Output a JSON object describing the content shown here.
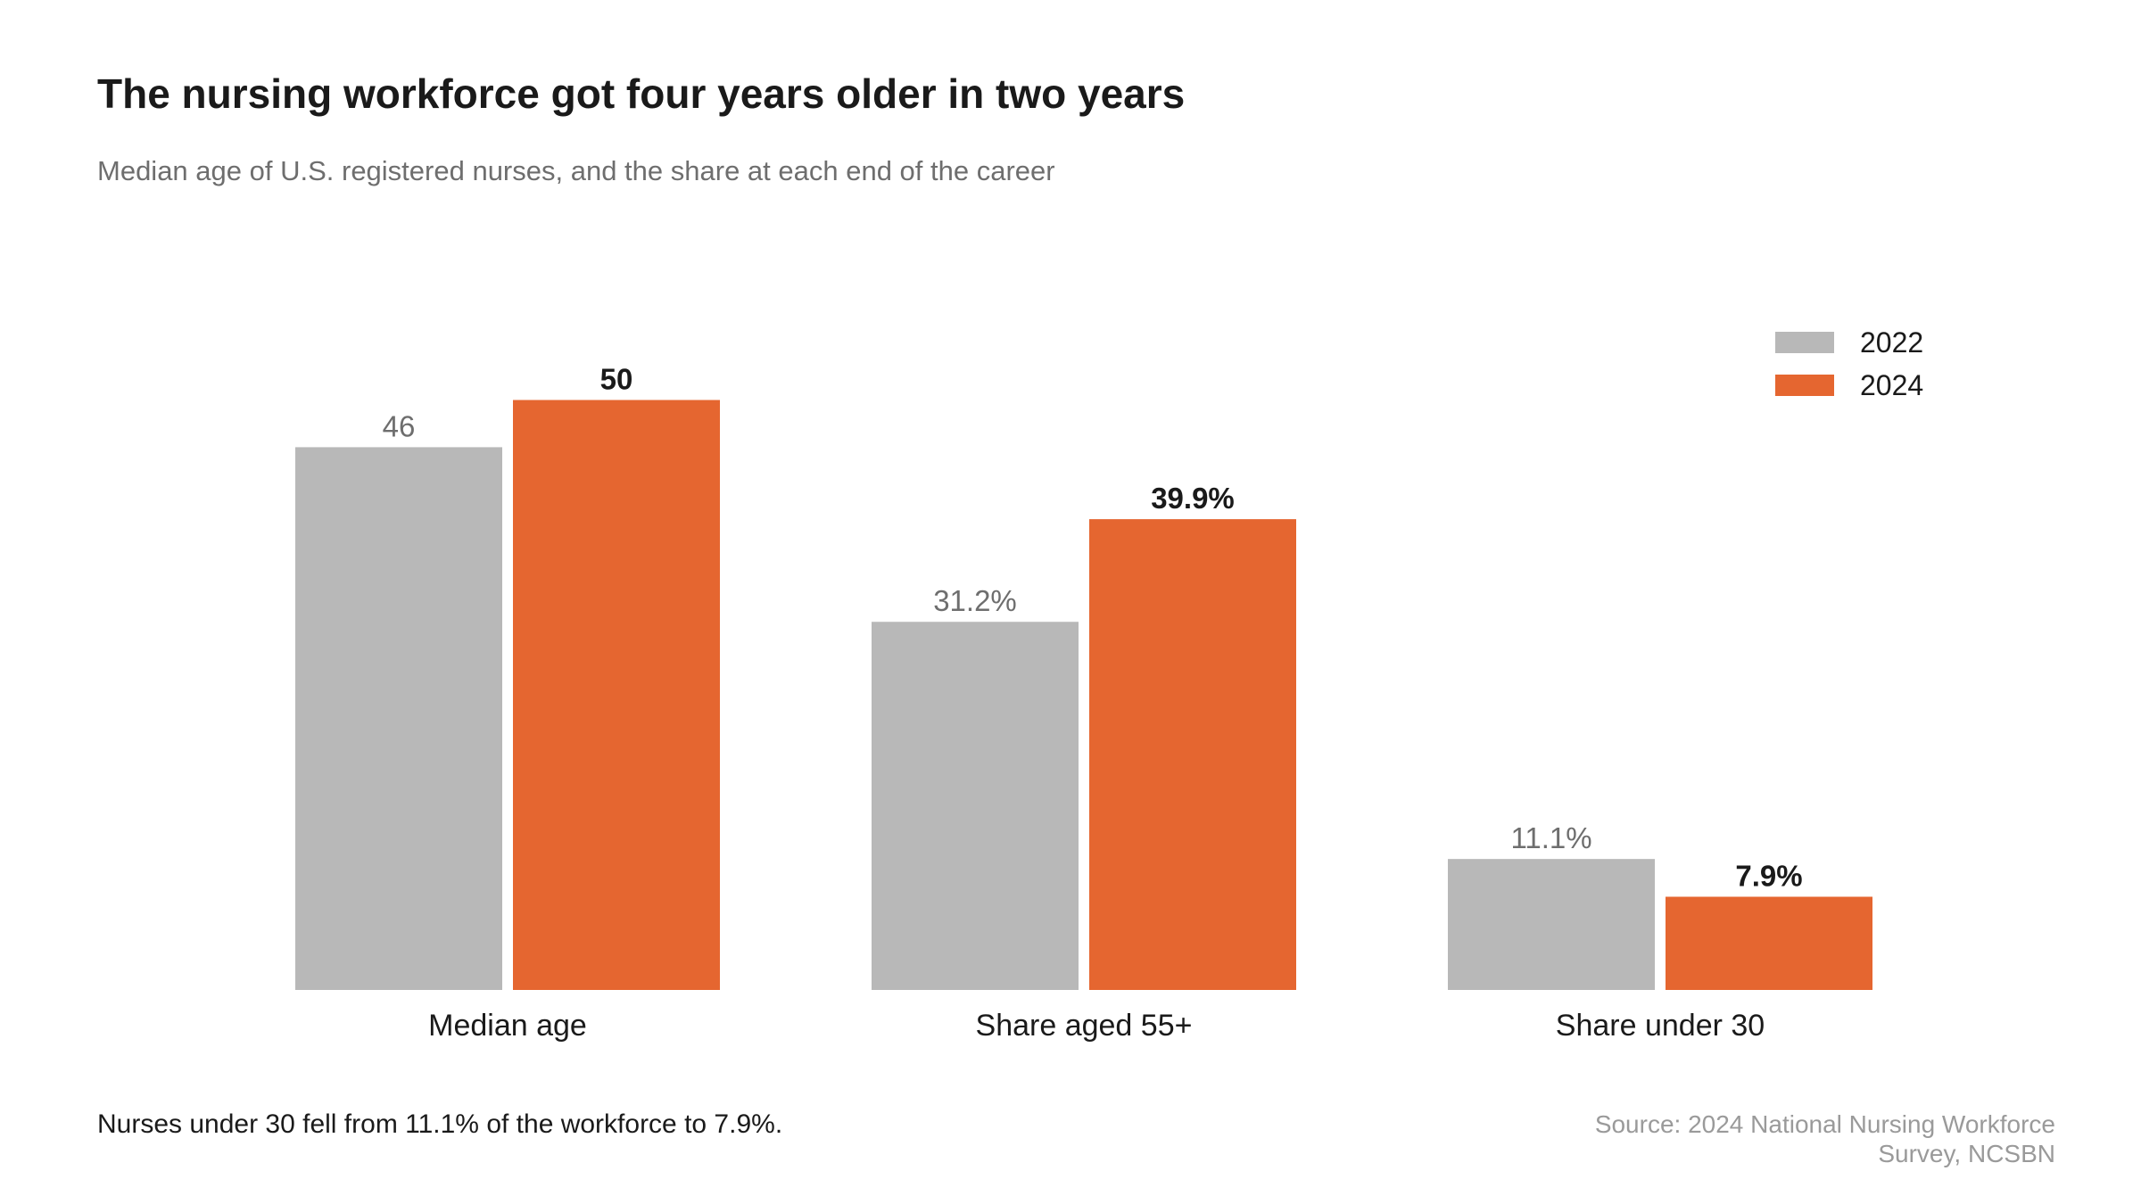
{
  "header": {
    "title": "The nursing workforce got four years older in two years",
    "subtitle": "Median age of U.S. registered nurses, and the share at each end of the career"
  },
  "footer": {
    "note": "Nurses under 30 fell from 11.1% of the workforce to 7.9%.",
    "source": "Source: 2024 National Nursing Workforce Survey, NCSBN"
  },
  "colors": {
    "series_2022": "#b8b8b8",
    "series_2024": "#e56630",
    "label_2022": "#6e6e6e",
    "label_2024": "#1a1a1a"
  },
  "chart_data": {
    "type": "bar",
    "title": "The nursing workforce got four years older in two years",
    "subtitle": "Median age of U.S. registered nurses, and the share at each end of the career",
    "categories": [
      "Median age",
      "Share aged 55+",
      "Share under 30"
    ],
    "series": [
      {
        "name": "2022",
        "values": [
          46,
          31.2,
          11.1
        ],
        "labels": [
          "46",
          "31.2%",
          "11.1%"
        ]
      },
      {
        "name": "2024",
        "values": [
          50,
          39.9,
          7.9
        ],
        "labels": [
          "50",
          "39.9%",
          "7.9%"
        ]
      }
    ],
    "ylim": [
      0,
      50
    ],
    "grid": false,
    "legend": "top-right"
  }
}
